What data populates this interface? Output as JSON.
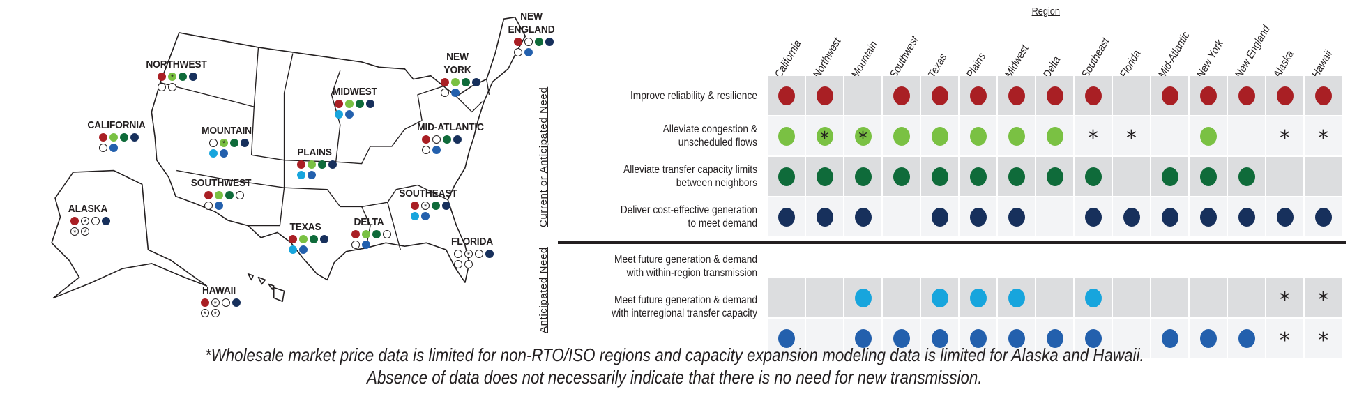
{
  "colors": {
    "reliability": "#a91f24",
    "congestion": "#7ac143",
    "transfer": "#0f6b3a",
    "generation": "#17305c",
    "within_region": "#17a5dd",
    "interregional": "#2360ad",
    "cell_shade": "#dcdddf",
    "cell_light": "#f3f4f6"
  },
  "matrix": {
    "header": "Region",
    "columns": [
      "California",
      "Northwest",
      "Mountain",
      "Southwest",
      "Texas",
      "Plains",
      "Midwest",
      "Delta",
      "Southeast",
      "Florida",
      "Mid-Atlantic",
      "New York",
      "New England",
      "Alaska",
      "Hawaii"
    ],
    "groups": [
      {
        "label": "Current or Anticipated Need"
      },
      {
        "label": "Anticipated Need"
      }
    ],
    "rows": [
      {
        "label_lines": [
          "Improve reliability & resilience"
        ],
        "color_key": "reliability",
        "values": [
          "dot",
          "dot",
          "",
          "dot",
          "dot",
          "dot",
          "dot",
          "dot",
          "dot",
          "",
          "dot",
          "dot",
          "dot",
          "dot",
          "dot"
        ]
      },
      {
        "label_lines": [
          "Alleviate congestion &",
          "unscheduled flows"
        ],
        "color_key": "congestion",
        "values": [
          "dot",
          "dot-star",
          "dot-star",
          "dot",
          "dot",
          "dot",
          "dot",
          "dot",
          "star",
          "star",
          "",
          "dot",
          "",
          "star",
          "star"
        ]
      },
      {
        "label_lines": [
          "Alleviate transfer capacity limits",
          "between neighbors"
        ],
        "color_key": "transfer",
        "values": [
          "dot",
          "dot",
          "dot",
          "dot",
          "dot",
          "dot",
          "dot",
          "dot",
          "dot",
          "",
          "dot",
          "dot",
          "dot",
          "",
          ""
        ]
      },
      {
        "label_lines": [
          "Deliver cost-effective generation",
          "to meet demand"
        ],
        "color_key": "generation",
        "values": [
          "dot",
          "dot",
          "dot",
          "",
          "dot",
          "dot",
          "dot",
          "",
          "dot",
          "dot",
          "dot",
          "dot",
          "dot",
          "dot",
          "dot"
        ]
      },
      {
        "label_lines": [
          "Meet future generation & demand",
          "with within-region transmission"
        ],
        "color_key": "within_region",
        "values": [
          "",
          "",
          "dot",
          "",
          "dot",
          "dot",
          "dot",
          "",
          "dot",
          "",
          "",
          "",
          "",
          "star",
          "star"
        ]
      },
      {
        "label_lines": [
          "Meet future generation & demand",
          "with interregional transfer capacity"
        ],
        "color_key": "interregional",
        "values": [
          "dot",
          "",
          "dot",
          "dot",
          "dot",
          "dot",
          "dot",
          "dot",
          "dot",
          "",
          "dot",
          "dot",
          "dot",
          "star",
          "star"
        ]
      }
    ]
  },
  "map": {
    "regions": [
      {
        "label_lines": [
          "CALIFORNIA"
        ]
      },
      {
        "label_lines": [
          "NORTHWEST"
        ]
      },
      {
        "label_lines": [
          "MOUNTAIN"
        ]
      },
      {
        "label_lines": [
          "SOUTHWEST"
        ]
      },
      {
        "label_lines": [
          "TEXAS"
        ]
      },
      {
        "label_lines": [
          "PLAINS"
        ]
      },
      {
        "label_lines": [
          "MIDWEST"
        ]
      },
      {
        "label_lines": [
          "DELTA"
        ]
      },
      {
        "label_lines": [
          "SOUTHEAST"
        ]
      },
      {
        "label_lines": [
          "FLORIDA"
        ]
      },
      {
        "label_lines": [
          "MID-ATLANTIC"
        ]
      },
      {
        "label_lines": [
          "NEW",
          "YORK"
        ]
      },
      {
        "label_lines": [
          "NEW",
          "ENGLAND"
        ]
      },
      {
        "label_lines": [
          "ALASKA"
        ]
      },
      {
        "label_lines": [
          "HAWAII"
        ]
      }
    ]
  },
  "footnote": {
    "line1": "*Wholesale market price data is limited for non-RTO/ISO regions and capacity expansion modeling data is limited for Alaska and Hawaii.",
    "line2": "Absence of data does not necessarily indicate that there is no need for new transmission."
  }
}
